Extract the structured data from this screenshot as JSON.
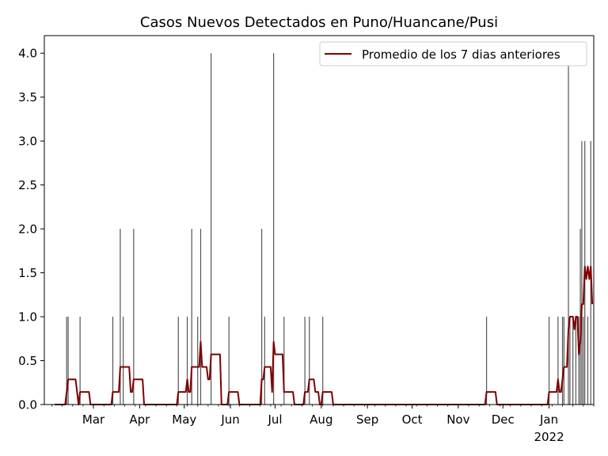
{
  "chart_data": {
    "type": "bar+line",
    "title": "Casos Nuevos Detectados en Puno/Huancane/Pusi",
    "xlabel": "",
    "ylabel": "",
    "x_range": [
      "2021-01-27",
      "2022-01-31"
    ],
    "ylim": [
      0,
      4.2
    ],
    "y_ticks": [
      "0.0",
      "0.5",
      "1.0",
      "1.5",
      "2.0",
      "2.5",
      "3.0",
      "3.5",
      "4.0"
    ],
    "x_ticks": [
      {
        "date": "2021-03-01",
        "label": "Mar"
      },
      {
        "date": "2021-04-01",
        "label": "Apr"
      },
      {
        "date": "2021-05-01",
        "label": "May"
      },
      {
        "date": "2021-06-01",
        "label": "Jun"
      },
      {
        "date": "2021-07-01",
        "label": "Jul"
      },
      {
        "date": "2021-08-01",
        "label": "Aug"
      },
      {
        "date": "2021-09-01",
        "label": "Sep"
      },
      {
        "date": "2021-10-01",
        "label": "Oct"
      },
      {
        "date": "2021-11-01",
        "label": "Nov"
      },
      {
        "date": "2021-12-01",
        "label": "Dec"
      },
      {
        "date": "2022-01-01",
        "label": "Jan",
        "sublabel": "2022"
      }
    ],
    "bar_color": "#555555",
    "line_color": "#800000",
    "legend": {
      "position": "upper right",
      "label": "Promedio de los 7 dias anteriores"
    },
    "daily_cases": [
      {
        "date": "2021-02-11",
        "value": 1
      },
      {
        "date": "2021-02-12",
        "value": 1
      },
      {
        "date": "2021-02-20",
        "value": 1
      },
      {
        "date": "2021-03-14",
        "value": 1
      },
      {
        "date": "2021-03-19",
        "value": 2
      },
      {
        "date": "2021-03-21",
        "value": 1
      },
      {
        "date": "2021-03-28",
        "value": 2
      },
      {
        "date": "2021-04-27",
        "value": 1
      },
      {
        "date": "2021-05-03",
        "value": 1
      },
      {
        "date": "2021-05-06",
        "value": 2
      },
      {
        "date": "2021-05-10",
        "value": 1
      },
      {
        "date": "2021-05-12",
        "value": 2
      },
      {
        "date": "2021-05-19",
        "value": 4
      },
      {
        "date": "2021-05-31",
        "value": 1
      },
      {
        "date": "2021-06-22",
        "value": 2
      },
      {
        "date": "2021-06-24",
        "value": 1
      },
      {
        "date": "2021-06-30",
        "value": 4
      },
      {
        "date": "2021-07-07",
        "value": 1
      },
      {
        "date": "2021-07-21",
        "value": 1
      },
      {
        "date": "2021-07-24",
        "value": 1
      },
      {
        "date": "2021-08-02",
        "value": 1
      },
      {
        "date": "2021-11-20",
        "value": 1
      },
      {
        "date": "2022-01-01",
        "value": 1
      },
      {
        "date": "2022-01-07",
        "value": 1
      },
      {
        "date": "2022-01-10",
        "value": 1
      },
      {
        "date": "2022-01-11",
        "value": 1
      },
      {
        "date": "2022-01-14",
        "value": 4
      },
      {
        "date": "2022-01-15",
        "value": 1
      },
      {
        "date": "2022-01-17",
        "value": 1
      },
      {
        "date": "2022-01-19",
        "value": 1
      },
      {
        "date": "2022-01-21",
        "value": 1
      },
      {
        "date": "2022-01-22",
        "value": 2
      },
      {
        "date": "2022-01-23",
        "value": 3
      },
      {
        "date": "2022-01-24",
        "value": 1
      },
      {
        "date": "2022-01-25",
        "value": 3
      },
      {
        "date": "2022-01-27",
        "value": 1
      },
      {
        "date": "2022-01-29",
        "value": 3
      }
    ]
  }
}
